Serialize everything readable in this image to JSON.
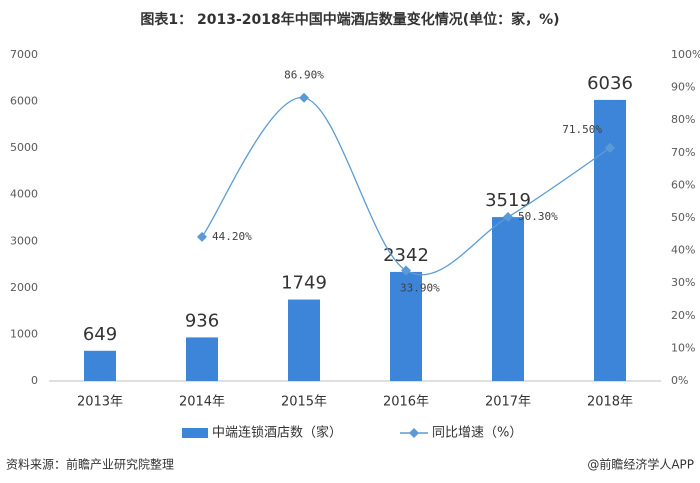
{
  "chart_data": {
    "type": "bar",
    "title": "图表1： 2013-2018年中国中端酒店数量变化情况(单位：家，%)",
    "categories": [
      "2013年",
      "2014年",
      "2015年",
      "2016年",
      "2017年",
      "2018年"
    ],
    "series": [
      {
        "name": "中端连锁酒店数（家）",
        "type": "bar",
        "color": "#3d85d8",
        "values": [
          649,
          936,
          1749,
          2342,
          3519,
          6036
        ]
      },
      {
        "name": "同比增速（%）",
        "type": "line",
        "axis": "y2",
        "color": "#5b9bd5",
        "values": [
          null,
          44.2,
          86.9,
          33.9,
          50.3,
          71.5
        ],
        "value_labels": [
          null,
          "44.20%",
          "86.90%",
          "33.90%",
          "50.30%",
          "71.50%"
        ]
      }
    ],
    "ylim": [
      0,
      7000
    ],
    "yticks": [
      0,
      1000,
      2000,
      3000,
      4000,
      5000,
      6000,
      7000
    ],
    "y2lim": [
      0,
      100
    ],
    "y2ticks": [
      {
        "value": 0,
        "label": "0%"
      },
      {
        "value": 10,
        "label": "10%"
      },
      {
        "value": 20,
        "label": "20%"
      },
      {
        "value": 30,
        "label": "30%"
      },
      {
        "value": 40,
        "label": "40%"
      },
      {
        "value": 50,
        "label": "50%"
      },
      {
        "value": 60,
        "label": "60%"
      },
      {
        "value": 70,
        "label": "70%"
      },
      {
        "value": 80,
        "label": "80%"
      },
      {
        "value": 90,
        "label": "90%"
      },
      {
        "value": 100,
        "label": "100%"
      }
    ],
    "grid": false,
    "legend": "bottom",
    "source": "资料来源：前瞻产业研究院整理",
    "credit": "@前瞻经济学人APP"
  }
}
